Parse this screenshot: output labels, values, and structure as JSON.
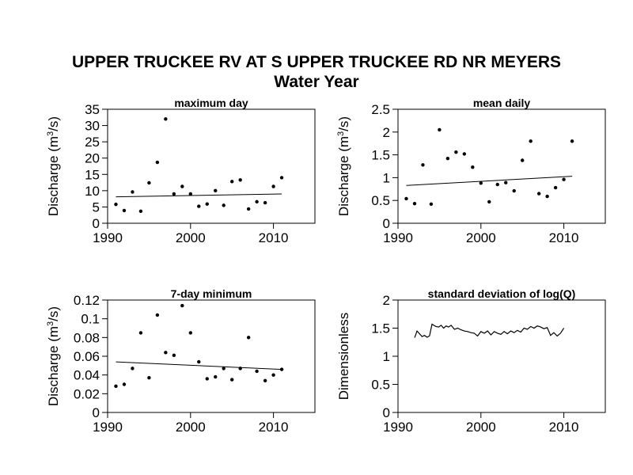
{
  "figure": {
    "title_line1": "UPPER TRUCKEE RV AT S UPPER TRUCKEE RD NR MEYERS",
    "title_line2": "Water Year"
  },
  "chart_data": [
    {
      "type": "scatter",
      "title": "maximum day",
      "xlabel": "",
      "ylabel": "Discharge (m3/s)",
      "ylabel_parts": {
        "pre": "Discharge (m",
        "sup": "3",
        "post": "/s)"
      },
      "xlim": [
        1990,
        2015
      ],
      "ylim": [
        0,
        35
      ],
      "xticks": [
        1990,
        2000,
        2010
      ],
      "yticks": [
        0,
        5,
        10,
        15,
        20,
        25,
        30,
        35
      ],
      "ytick_labels": [
        "0",
        "5",
        "10",
        "15",
        "20",
        "25",
        "30",
        "35"
      ],
      "points": {
        "x": [
          1991,
          1992,
          1993,
          1994,
          1995,
          1996,
          1997,
          1998,
          1999,
          2000,
          2001,
          2002,
          2003,
          2004,
          2005,
          2006,
          2007,
          2008,
          2009,
          2010,
          2011
        ],
        "y": [
          5.8,
          3.9,
          9.6,
          3.7,
          12.4,
          18.7,
          32.0,
          9.0,
          11.3,
          9.0,
          5.2,
          5.9,
          10.0,
          5.5,
          12.8,
          13.3,
          4.4,
          6.6,
          6.3,
          11.3,
          14.0
        ]
      },
      "trend": {
        "x": [
          1991,
          2011
        ],
        "y": [
          8.1,
          9.0
        ]
      }
    },
    {
      "type": "scatter",
      "title": "mean daily",
      "xlabel": "",
      "ylabel": "Discharge (m3/s)",
      "ylabel_parts": {
        "pre": "Discharge (m",
        "sup": "3",
        "post": "/s)"
      },
      "xlim": [
        1990,
        2015
      ],
      "ylim": [
        0,
        2.5
      ],
      "xticks": [
        1990,
        2000,
        2010
      ],
      "yticks": [
        0,
        0.5,
        1,
        1.5,
        2,
        2.5
      ],
      "ytick_labels": [
        "0",
        "0.5",
        "1",
        "1.5",
        "2",
        "2.5"
      ],
      "points": {
        "x": [
          1991,
          1992,
          1993,
          1994,
          1995,
          1996,
          1997,
          1998,
          1999,
          2000,
          2001,
          2002,
          2003,
          2004,
          2005,
          2006,
          2007,
          2008,
          2009,
          2010,
          2011
        ],
        "y": [
          0.54,
          0.43,
          1.28,
          0.42,
          2.05,
          1.42,
          1.56,
          1.52,
          1.23,
          0.88,
          0.47,
          0.85,
          0.89,
          0.71,
          1.38,
          1.8,
          0.65,
          0.59,
          0.78,
          0.96,
          1.8
        ]
      },
      "trend": {
        "x": [
          1991,
          2011
        ],
        "y": [
          0.83,
          1.03
        ]
      }
    },
    {
      "type": "scatter",
      "title": "7-day minimum",
      "xlabel": "",
      "ylabel": "Discharge (m3/s)",
      "ylabel_parts": {
        "pre": "Discharge (m",
        "sup": "3",
        "post": "/s)"
      },
      "xlim": [
        1990,
        2015
      ],
      "ylim": [
        0,
        0.12
      ],
      "xticks": [
        1990,
        2000,
        2010
      ],
      "yticks": [
        0,
        0.02,
        0.04,
        0.06,
        0.08,
        0.1,
        0.12
      ],
      "ytick_labels": [
        "0",
        "0.02",
        "0.04",
        "0.06",
        "0.08",
        "0.1",
        "0.12"
      ],
      "points": {
        "x": [
          1991,
          1992,
          1993,
          1994,
          1995,
          1996,
          1997,
          1998,
          1999,
          2000,
          2001,
          2002,
          2003,
          2004,
          2005,
          2006,
          2007,
          2008,
          2009,
          2010,
          2011
        ],
        "y": [
          0.028,
          0.03,
          0.047,
          0.085,
          0.037,
          0.104,
          0.064,
          0.061,
          0.114,
          0.085,
          0.054,
          0.036,
          0.038,
          0.047,
          0.035,
          0.047,
          0.08,
          0.044,
          0.034,
          0.04,
          0.046
        ]
      },
      "trend": {
        "x": [
          1991,
          2011
        ],
        "y": [
          0.054,
          0.046
        ]
      }
    },
    {
      "type": "line",
      "title": "standard deviation of log(Q)",
      "xlabel": "",
      "ylabel": "Dimensionless",
      "xlim": [
        1990,
        2015
      ],
      "ylim": [
        0,
        2
      ],
      "xticks": [
        1990,
        2000,
        2010
      ],
      "yticks": [
        0,
        0.5,
        1,
        1.5,
        2
      ],
      "ytick_labels": [
        "0",
        "0.5",
        "1",
        "1.5",
        "2"
      ],
      "line": {
        "x": [
          1992.0,
          1992.3,
          1992.6,
          1992.9,
          1993.2,
          1993.5,
          1993.8,
          1994.1,
          1994.3,
          1994.6,
          1994.9,
          1995.2,
          1995.5,
          1995.8,
          1996.1,
          1996.4,
          1996.8,
          1997.2,
          1997.6,
          1998.0,
          1998.4,
          1998.8,
          1999.2,
          1999.6,
          2000.0,
          2000.4,
          2000.8,
          2001.2,
          2001.6,
          2002.0,
          2002.4,
          2002.8,
          2003.2,
          2003.6,
          2004.0,
          2004.4,
          2004.8,
          2005.2,
          2005.6,
          2006.0,
          2006.4,
          2006.8,
          2007.2,
          2007.6,
          2008.0,
          2008.4,
          2008.8,
          2009.2,
          2009.6,
          2010.0
        ],
        "y": [
          1.33,
          1.45,
          1.4,
          1.35,
          1.37,
          1.34,
          1.36,
          1.57,
          1.55,
          1.53,
          1.52,
          1.55,
          1.5,
          1.54,
          1.52,
          1.55,
          1.48,
          1.5,
          1.47,
          1.45,
          1.44,
          1.42,
          1.41,
          1.36,
          1.44,
          1.41,
          1.45,
          1.38,
          1.44,
          1.41,
          1.39,
          1.44,
          1.4,
          1.45,
          1.42,
          1.46,
          1.43,
          1.5,
          1.48,
          1.53,
          1.5,
          1.54,
          1.52,
          1.49,
          1.51,
          1.37,
          1.42,
          1.36,
          1.41,
          1.5
        ]
      }
    }
  ]
}
